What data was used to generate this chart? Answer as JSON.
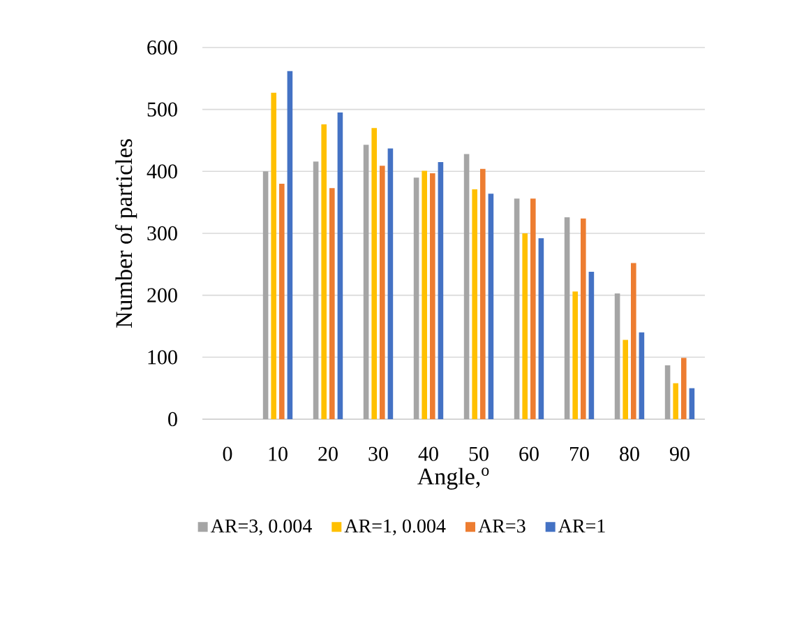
{
  "chart_data": {
    "type": "bar",
    "xlabel": "Angle,$^{o}$",
    "ylabel": "Number of particles",
    "categories": [
      "0",
      "10",
      "20",
      "30",
      "40",
      "50",
      "60",
      "70",
      "80",
      "90"
    ],
    "series": [
      {
        "name": "AR=3, 0.004",
        "color": "#a5a5a5",
        "values": [
          null,
          400,
          416,
          443,
          390,
          428,
          356,
          326,
          203,
          87
        ]
      },
      {
        "name": "AR=1, 0.004",
        "color": "#ffc000",
        "values": [
          null,
          527,
          476,
          470,
          401,
          371,
          300,
          206,
          128,
          58
        ]
      },
      {
        "name": "AR=3",
        "color": "#ed7d31",
        "values": [
          null,
          380,
          373,
          409,
          397,
          404,
          356,
          324,
          252,
          99
        ]
      },
      {
        "name": "AR=1",
        "color": "#4472c4",
        "values": [
          null,
          562,
          495,
          437,
          415,
          364,
          292,
          238,
          140,
          50
        ]
      }
    ],
    "ylim": [
      0,
      600
    ],
    "yticks": [
      0,
      100,
      200,
      300,
      400,
      500,
      600
    ],
    "grid": "y",
    "legend": "bottom"
  }
}
